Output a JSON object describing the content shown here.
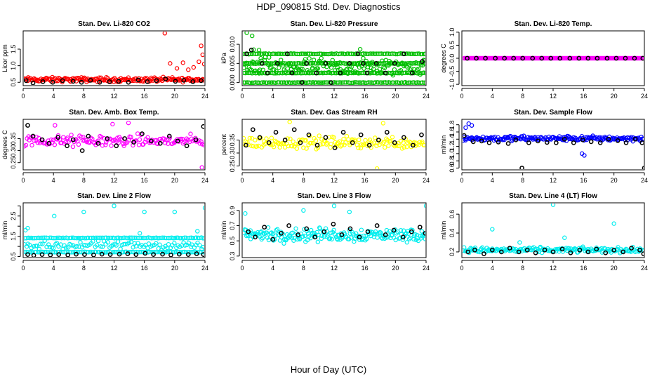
{
  "figure": {
    "title": "HDP_090815  Std. Dev. Diagnostics",
    "xlabel": "Hour of Day (UTC)"
  },
  "chart_data": [
    {
      "type": "scatter",
      "title": "Stan. Dev. Li-820 CO2",
      "ylabel": "Licor ppm",
      "xlim": [
        0,
        24
      ],
      "ylim": [
        0.4,
        2.05
      ],
      "xticks": [
        0,
        4,
        8,
        12,
        16,
        20,
        24
      ],
      "yticks": [
        0.5,
        1.0,
        1.5
      ],
      "xtick_labels": [
        "0",
        "4",
        "8",
        "12",
        "16",
        "20",
        "24"
      ],
      "ytick_labels": [
        "0.5",
        "1.0",
        "1.5"
      ],
      "color": "#ff0000",
      "cloud": {
        "base": 0.58,
        "spread": 0.1,
        "density": 190
      },
      "highlights": [
        [
          18.7,
          1.98
        ],
        [
          19.4,
          1.07
        ],
        [
          20.3,
          0.92
        ],
        [
          21.1,
          1.09
        ],
        [
          21.8,
          0.88
        ],
        [
          22.5,
          0.95
        ],
        [
          23.2,
          1.12
        ],
        [
          23.5,
          1.6
        ],
        [
          23.7,
          1.33
        ],
        [
          23.9,
          1.05
        ]
      ],
      "black_points": [
        [
          0.4,
          0.55
        ],
        [
          1.3,
          0.48
        ],
        [
          2.6,
          0.52
        ],
        [
          3.9,
          0.5
        ],
        [
          5.2,
          0.55
        ],
        [
          6.6,
          0.53
        ],
        [
          7.7,
          0.5
        ],
        [
          8.9,
          0.56
        ],
        [
          10.1,
          0.5
        ],
        [
          11.4,
          0.52
        ],
        [
          12.6,
          0.53
        ],
        [
          13.9,
          0.5
        ],
        [
          15.2,
          0.57
        ],
        [
          16.4,
          0.52
        ],
        [
          17.6,
          0.55
        ],
        [
          18.8,
          0.6
        ],
        [
          20.1,
          0.53
        ],
        [
          21.2,
          0.56
        ],
        [
          22.4,
          0.52
        ],
        [
          23.5,
          0.55
        ]
      ]
    },
    {
      "type": "scatter",
      "title": "Stan. Dev. Li-820 Pressure",
      "ylabel": "kPa",
      "xlim": [
        0,
        24
      ],
      "ylim": [
        -0.0008,
        0.0135
      ],
      "xticks": [
        0,
        4,
        8,
        12,
        16,
        20,
        24
      ],
      "yticks": [
        0,
        0.005,
        0.01
      ],
      "xtick_labels": [
        "0",
        "4",
        "8",
        "12",
        "16",
        "20",
        "24"
      ],
      "ytick_labels": [
        "0.000",
        "0.005",
        "0.010"
      ],
      "color": "#00bf00",
      "bands": [
        0.0,
        0.0025,
        0.005,
        0.0075
      ],
      "cloud": {
        "base": 0.004,
        "spread": 0.0035,
        "density": 150
      },
      "highlights": [
        [
          0.6,
          0.013
        ],
        [
          1.3,
          0.0122
        ],
        [
          1.5,
          0.0086
        ],
        [
          15.4,
          0.0087
        ],
        [
          2.2,
          0.0085
        ]
      ],
      "black_points": [
        [
          0.6,
          0.0075
        ],
        [
          1.2,
          0.0085
        ],
        [
          2.6,
          0.005
        ],
        [
          3.3,
          0.0025
        ],
        [
          4.6,
          0.005
        ],
        [
          5.9,
          0.0075
        ],
        [
          6.5,
          0.0025
        ],
        [
          7.8,
          0.0
        ],
        [
          8.4,
          0.005
        ],
        [
          9.7,
          0.0025
        ],
        [
          10.9,
          0.005
        ],
        [
          11.6,
          0.0
        ],
        [
          12.8,
          0.0025
        ],
        [
          14.0,
          0.005
        ],
        [
          15.1,
          0.0075
        ],
        [
          15.8,
          0.005
        ],
        [
          16.3,
          0.0025
        ],
        [
          17.5,
          0.005
        ],
        [
          18.7,
          0.0025
        ],
        [
          19.9,
          0.005
        ],
        [
          21.1,
          0.0075
        ],
        [
          22.2,
          0.0025
        ],
        [
          23.5,
          0.0055
        ]
      ]
    },
    {
      "type": "scatter",
      "title": "Stan. Dev. Li-820 Temp.",
      "ylabel": "degrees C",
      "xlim": [
        0,
        24
      ],
      "ylim": [
        -1.05,
        1.05
      ],
      "xticks": [
        0,
        4,
        8,
        12,
        16,
        20,
        24
      ],
      "yticks": [
        -1.0,
        -0.5,
        0.0,
        0.5,
        1.0
      ],
      "xtick_labels": [
        "0",
        "4",
        "8",
        "12",
        "16",
        "20",
        "24"
      ],
      "ytick_labels": [
        "-1.0",
        "-0.5",
        "0.0",
        "0.5",
        "1.0"
      ],
      "color": "#ff00ff",
      "flat_line": 0.0,
      "highlights": [],
      "black_points": [
        [
          0.7,
          0.0
        ],
        [
          1.9,
          0.0
        ],
        [
          3.1,
          0.0
        ],
        [
          4.4,
          0.0
        ],
        [
          5.6,
          0.0
        ],
        [
          6.8,
          0.0
        ],
        [
          8.0,
          0.0
        ],
        [
          9.3,
          0.0
        ],
        [
          10.5,
          0.0
        ],
        [
          11.7,
          0.0
        ],
        [
          12.9,
          0.0
        ],
        [
          14.2,
          0.0
        ],
        [
          15.4,
          0.0
        ],
        [
          16.6,
          0.0
        ],
        [
          17.8,
          0.0
        ],
        [
          19.1,
          0.0
        ],
        [
          20.3,
          0.0
        ],
        [
          21.5,
          0.0
        ],
        [
          22.7,
          0.0
        ],
        [
          23.8,
          0.0
        ]
      ]
    },
    {
      "type": "scatter",
      "title": "Stan. Dev. Amb. Box Temp.",
      "ylabel": "degrees C",
      "xlim": [
        0,
        24
      ],
      "ylim": [
        0.22,
        0.43
      ],
      "xticks": [
        0,
        4,
        8,
        12,
        16,
        20,
        24
      ],
      "yticks": [
        0.25,
        0.3,
        0.35
      ],
      "xtick_labels": [
        "0",
        "4",
        "8",
        "12",
        "16",
        "20",
        "24"
      ],
      "ytick_labels": [
        "0.25",
        "0.30",
        "0.35"
      ],
      "color": "#ff00ff",
      "cloud": {
        "base": 0.34,
        "spread": 0.035,
        "density": 150
      },
      "highlights": [
        [
          13.9,
          0.415
        ],
        [
          4.2,
          0.405
        ],
        [
          11.8,
          0.41
        ],
        [
          23.6,
          0.23
        ]
      ],
      "black_points": [
        [
          0.6,
          0.405
        ],
        [
          1.3,
          0.36
        ],
        [
          2.5,
          0.345
        ],
        [
          3.4,
          0.33
        ],
        [
          4.6,
          0.355
        ],
        [
          5.8,
          0.32
        ],
        [
          6.6,
          0.345
        ],
        [
          7.8,
          0.3
        ],
        [
          8.6,
          0.36
        ],
        [
          9.9,
          0.33
        ],
        [
          11.1,
          0.35
        ],
        [
          12.3,
          0.32
        ],
        [
          13.4,
          0.35
        ],
        [
          14.6,
          0.335
        ],
        [
          15.7,
          0.37
        ],
        [
          16.9,
          0.34
        ],
        [
          18.1,
          0.33
        ],
        [
          19.3,
          0.36
        ],
        [
          20.4,
          0.34
        ],
        [
          21.6,
          0.32
        ],
        [
          22.8,
          0.345
        ],
        [
          23.8,
          0.4
        ]
      ]
    },
    {
      "type": "scatter",
      "title": "Stan. Dev. Gas Stream RH",
      "ylabel": "percent",
      "xlim": [
        0,
        24
      ],
      "ylim": [
        0.235,
        0.43
      ],
      "xticks": [
        0,
        4,
        8,
        12,
        16,
        20,
        24
      ],
      "yticks": [
        0.25,
        0.3,
        0.35
      ],
      "xtick_labels": [
        "0",
        "4",
        "8",
        "12",
        "16",
        "20",
        "24"
      ],
      "ytick_labels": [
        "0.25",
        "0.30",
        "0.35"
      ],
      "color": "#ffff00",
      "cloud": {
        "base": 0.34,
        "spread": 0.035,
        "density": 150
      },
      "highlights": [
        [
          6.2,
          0.42
        ],
        [
          18.4,
          0.415
        ],
        [
          17.6,
          0.24
        ]
      ],
      "black_points": [
        [
          0.5,
          0.33
        ],
        [
          1.4,
          0.39
        ],
        [
          2.3,
          0.36
        ],
        [
          3.5,
          0.34
        ],
        [
          4.4,
          0.38
        ],
        [
          5.6,
          0.35
        ],
        [
          6.8,
          0.39
        ],
        [
          7.6,
          0.34
        ],
        [
          8.7,
          0.37
        ],
        [
          9.8,
          0.33
        ],
        [
          10.9,
          0.36
        ],
        [
          12.1,
          0.32
        ],
        [
          13.2,
          0.38
        ],
        [
          14.4,
          0.34
        ],
        [
          15.5,
          0.37
        ],
        [
          16.6,
          0.33
        ],
        [
          17.8,
          0.35
        ],
        [
          18.9,
          0.38
        ],
        [
          19.9,
          0.34
        ],
        [
          21.1,
          0.36
        ],
        [
          22.3,
          0.33
        ],
        [
          23.4,
          0.37
        ]
      ]
    },
    {
      "type": "scatter",
      "title": "Stan. Dev. Sample Flow",
      "ylabel": "ml/min",
      "xlim": [
        0,
        24
      ],
      "ylim": [
        0.55,
        1.95
      ],
      "xticks": [
        0,
        4,
        8,
        12,
        16,
        20,
        24
      ],
      "yticks": [
        0.6,
        0.8,
        1.0,
        1.2,
        1.4,
        1.6,
        1.8
      ],
      "xtick_labels": [
        "0",
        "4",
        "8",
        "12",
        "16",
        "20",
        "24"
      ],
      "ytick_labels": [
        "0.6",
        "0.8",
        "1.0",
        "1.2",
        "1.4",
        "1.6",
        "1.8"
      ],
      "color": "#0000ff",
      "cloud": {
        "base": 1.42,
        "spread": 0.1,
        "density": 200
      },
      "highlights": [
        [
          0.9,
          1.83
        ],
        [
          1.3,
          1.78
        ],
        [
          0.5,
          1.72
        ],
        [
          15.8,
          1.0
        ],
        [
          16.1,
          0.95
        ]
      ],
      "black_points": [
        [
          0.3,
          1.5
        ],
        [
          1.5,
          1.33
        ],
        [
          2.6,
          1.35
        ],
        [
          3.6,
          1.3
        ],
        [
          4.8,
          1.32
        ],
        [
          6.1,
          1.28
        ],
        [
          7.1,
          1.38
        ],
        [
          7.9,
          0.6
        ],
        [
          8.8,
          1.3
        ],
        [
          10.0,
          1.35
        ],
        [
          11.2,
          1.31
        ],
        [
          12.4,
          1.3
        ],
        [
          13.5,
          1.4
        ],
        [
          14.7,
          1.3
        ],
        [
          15.9,
          1.38
        ],
        [
          17.0,
          1.33
        ],
        [
          18.2,
          1.3
        ],
        [
          19.3,
          1.4
        ],
        [
          20.5,
          1.36
        ],
        [
          21.6,
          1.3
        ],
        [
          22.8,
          1.4
        ],
        [
          23.7,
          1.3
        ],
        [
          24.0,
          0.6
        ]
      ]
    },
    {
      "type": "scatter",
      "title": "Stan. Dev. Line 2 Flow",
      "ylabel": "ml/min",
      "xlim": [
        0,
        24
      ],
      "ylim": [
        0.45,
        3.15
      ],
      "xticks": [
        0,
        4,
        8,
        12,
        16,
        20,
        24
      ],
      "yticks": [
        0.5,
        1.0,
        1.5,
        2.0,
        2.5,
        3.0
      ],
      "xtick_labels": [
        "0",
        "4",
        "8",
        "12",
        "16",
        "20",
        "24"
      ],
      "ytick_labels": [
        "0.5",
        "1.5",
        "2.5"
      ],
      "color": "#00eeee",
      "bands": [
        0.72,
        1.42
      ],
      "cloud": {
        "base": 1.05,
        "spread": 0.3,
        "density": 100
      },
      "highlights": [
        [
          0.3,
          1.8
        ],
        [
          0.6,
          1.9
        ],
        [
          4.1,
          2.5
        ],
        [
          8.0,
          2.7
        ],
        [
          12.0,
          3.0
        ],
        [
          16.0,
          2.7
        ],
        [
          20.0,
          2.7
        ],
        [
          24.0,
          2.9
        ],
        [
          23.0,
          1.75
        ],
        [
          15.4,
          1.65
        ]
      ],
      "black_points": [
        [
          0.6,
          0.6
        ],
        [
          1.4,
          0.56
        ],
        [
          2.5,
          0.6
        ],
        [
          3.6,
          0.58
        ],
        [
          4.7,
          0.6
        ],
        [
          5.9,
          0.58
        ],
        [
          7.0,
          0.62
        ],
        [
          8.1,
          0.6
        ],
        [
          9.3,
          0.58
        ],
        [
          10.4,
          0.62
        ],
        [
          11.5,
          0.6
        ],
        [
          12.7,
          0.62
        ],
        [
          13.8,
          0.64
        ],
        [
          14.9,
          0.6
        ],
        [
          16.1,
          0.66
        ],
        [
          17.2,
          0.6
        ],
        [
          18.4,
          0.62
        ],
        [
          19.5,
          0.58
        ],
        [
          20.6,
          0.62
        ],
        [
          21.8,
          0.6
        ],
        [
          22.9,
          0.64
        ],
        [
          23.8,
          0.6
        ]
      ]
    },
    {
      "type": "scatter",
      "title": "Stan. Dev. Line 3 Flow",
      "ylabel": "ml/min",
      "xlim": [
        0,
        24
      ],
      "ylim": [
        0.28,
        1.0
      ],
      "xticks": [
        0,
        4,
        8,
        12,
        16,
        20,
        24
      ],
      "yticks": [
        0.3,
        0.5,
        0.7,
        0.9
      ],
      "xtick_labels": [
        "0",
        "4",
        "8",
        "12",
        "16",
        "20",
        "24"
      ],
      "ytick_labels": [
        "0.3",
        "0.5",
        "0.7",
        "0.9"
      ],
      "color": "#00eeee",
      "cloud": {
        "base": 0.58,
        "spread": 0.13,
        "density": 200
      },
      "highlights": [
        [
          0.4,
          0.86
        ],
        [
          12.0,
          0.96
        ],
        [
          14.0,
          0.88
        ],
        [
          24.0,
          0.96
        ],
        [
          8.0,
          0.9
        ]
      ],
      "black_points": [
        [
          0.8,
          0.62
        ],
        [
          1.7,
          0.55
        ],
        [
          2.9,
          0.68
        ],
        [
          4.0,
          0.52
        ],
        [
          5.1,
          0.6
        ],
        [
          6.1,
          0.7
        ],
        [
          7.3,
          0.58
        ],
        [
          8.4,
          0.66
        ],
        [
          9.5,
          0.55
        ],
        [
          10.7,
          0.62
        ],
        [
          11.9,
          0.72
        ],
        [
          13.0,
          0.58
        ],
        [
          14.1,
          0.66
        ],
        [
          15.3,
          0.55
        ],
        [
          16.4,
          0.62
        ],
        [
          17.6,
          0.7
        ],
        [
          18.7,
          0.58
        ],
        [
          19.8,
          0.64
        ],
        [
          21.0,
          0.55
        ],
        [
          22.1,
          0.62
        ],
        [
          23.2,
          0.68
        ],
        [
          23.9,
          0.6
        ]
      ]
    },
    {
      "type": "scatter",
      "title": "Stan. Dev. Line 4 (LT) Flow",
      "ylabel": "ml/min",
      "xlim": [
        0,
        24
      ],
      "ylim": [
        0.14,
        0.72
      ],
      "xticks": [
        0,
        4,
        8,
        12,
        16,
        20,
        24
      ],
      "yticks": [
        0.2,
        0.4,
        0.6
      ],
      "xtick_labels": [
        "0",
        "4",
        "8",
        "12",
        "16",
        "20",
        "24"
      ],
      "ytick_labels": [
        "0.2",
        "0.4",
        "0.6"
      ],
      "color": "#00eeee",
      "cloud": {
        "base": 0.22,
        "spread": 0.04,
        "density": 180
      },
      "highlights": [
        [
          4.0,
          0.44
        ],
        [
          12.0,
          0.7
        ],
        [
          20.0,
          0.5
        ],
        [
          13.5,
          0.35
        ],
        [
          7.6,
          0.3
        ]
      ],
      "black_points": [
        [
          0.8,
          0.2
        ],
        [
          1.7,
          0.22
        ],
        [
          2.9,
          0.18
        ],
        [
          4.0,
          0.22
        ],
        [
          5.2,
          0.2
        ],
        [
          6.3,
          0.24
        ],
        [
          7.5,
          0.2
        ],
        [
          8.6,
          0.22
        ],
        [
          9.7,
          0.19
        ],
        [
          10.9,
          0.22
        ],
        [
          12.0,
          0.2
        ],
        [
          13.2,
          0.23
        ],
        [
          14.3,
          0.19
        ],
        [
          15.5,
          0.22
        ],
        [
          16.6,
          0.2
        ],
        [
          17.7,
          0.23
        ],
        [
          18.9,
          0.19
        ],
        [
          20.0,
          0.22
        ],
        [
          21.2,
          0.2
        ],
        [
          22.3,
          0.24
        ],
        [
          23.4,
          0.22
        ],
        [
          23.9,
          0.18
        ]
      ]
    }
  ]
}
